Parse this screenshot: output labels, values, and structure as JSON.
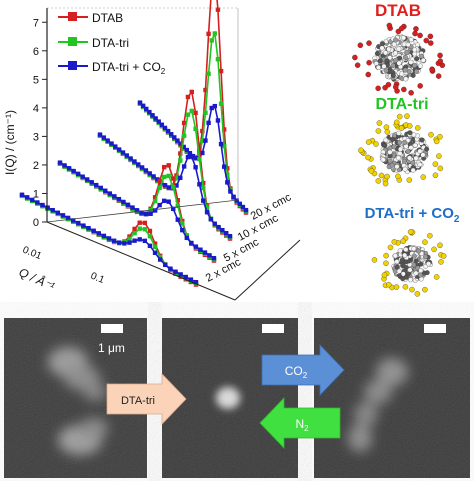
{
  "chart_data": {
    "type": "line",
    "title": "",
    "ylabel": "I(Q) / (cm⁻¹)",
    "xlabel": "Q / Å⁻¹",
    "y_ticks": [
      "0",
      "1",
      "2",
      "3",
      "4",
      "5",
      "6",
      "7"
    ],
    "x_ticks": [
      "0.01",
      "0.1"
    ],
    "ylim": [
      0,
      7.5
    ],
    "depth_labels": [
      "2 x cmc",
      "5 x cmc",
      "10 x cmc",
      "20 x cmc"
    ],
    "series": [
      {
        "name": "DTAB",
        "color": "#d42020",
        "peak_heights": [
          1.25,
          2.35,
          4.1,
          7.25
        ]
      },
      {
        "name": "DTA-tri",
        "color": "#22c422",
        "peak_heights": [
          1.0,
          1.95,
          3.4,
          5.15
        ]
      },
      {
        "name": "DTA-tri + CO₂",
        "color": "#1a1acc",
        "peak_heights": [
          0.55,
          1.0,
          1.75,
          2.55
        ]
      }
    ],
    "grid": false,
    "legend_position": "top-left"
  },
  "legend": {
    "items": [
      {
        "label": "DTAB",
        "color": "#d42020"
      },
      {
        "label": "DTA-tri",
        "color": "#22c422"
      },
      {
        "label": "DTA-tri + CO",
        "sub": "2",
        "color": "#1a1acc"
      }
    ]
  },
  "micelles": [
    {
      "label": "DTAB",
      "color": "#e02020",
      "sub": ""
    },
    {
      "label": "DTA-tri",
      "color": "#22c422",
      "sub": ""
    },
    {
      "label": "DTA-tri + CO",
      "color": "#1e6fc8",
      "sub": "2"
    }
  ],
  "micrographs": {
    "scale_label": "1 μm",
    "arrow_dta": "DTA-tri",
    "arrow_co2": "CO",
    "arrow_co2_sub": "2",
    "arrow_n2": "N",
    "arrow_n2_sub": "2"
  },
  "colors": {
    "dtab": "#d42020",
    "dtatri": "#22c422",
    "co2": "#1a1acc",
    "arrow_peach": "#fbd3b8",
    "arrow_blue": "#5b8fd6",
    "arrow_green": "#3fe03f"
  }
}
